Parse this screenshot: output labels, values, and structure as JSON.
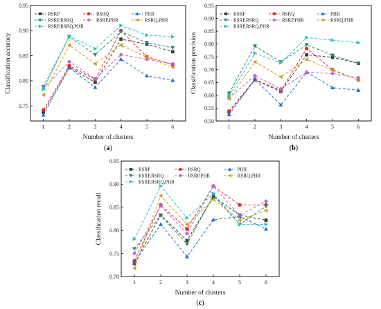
{
  "chart_data": [
    {
      "type": "line",
      "panel_label": "a",
      "xlabel": "Number of clusters",
      "ylabel": "Classification accuracy",
      "x": [
        1,
        2,
        3,
        4,
        5,
        6
      ],
      "xlim": [
        0.5,
        6.5
      ],
      "ylim": [
        0.72,
        0.95
      ],
      "yticks": [
        "0.75",
        "0.80",
        "0.85",
        "0.90",
        "0.95"
      ],
      "legend": "top-left, 3 columns",
      "series": [
        {
          "name": "RSRP",
          "color": "#3d3d3d",
          "marker": "square",
          "values": [
            0.737,
            0.827,
            0.797,
            0.883,
            0.873,
            0.858
          ]
        },
        {
          "name": "RSRQ",
          "color": "#e8282b",
          "marker": "circle",
          "values": [
            0.742,
            0.83,
            0.803,
            0.9,
            0.848,
            0.832
          ]
        },
        {
          "name": "PHR",
          "color": "#1f6fd1",
          "marker": "triangle-up",
          "values": [
            0.732,
            0.826,
            0.787,
            0.843,
            0.81,
            0.801
          ]
        },
        {
          "name": "RSRP,RSRQ",
          "color": "#2a8a5a",
          "marker": "triangle-down",
          "values": [
            0.788,
            0.888,
            0.852,
            0.898,
            0.876,
            0.866
          ]
        },
        {
          "name": "RSRP,PHR",
          "color": "#b564d8",
          "marker": "diamond",
          "values": [
            0.785,
            0.838,
            0.804,
            0.852,
            0.843,
            0.834
          ]
        },
        {
          "name": "RSRQ,PHR",
          "color": "#d49b14",
          "marker": "triangle-left",
          "values": [
            0.772,
            0.871,
            0.834,
            0.871,
            0.847,
            0.827
          ]
        },
        {
          "name": "RSRP,RSRQ,PHR",
          "color": "#22c4be",
          "marker": "triangle-right",
          "values": [
            0.783,
            0.889,
            0.864,
            0.91,
            0.891,
            0.888
          ]
        }
      ]
    },
    {
      "type": "line",
      "panel_label": "b",
      "xlabel": "Number of clusters",
      "ylabel": "Classification precision",
      "x": [
        1,
        2,
        3,
        4,
        5,
        6
      ],
      "xlim": [
        0.5,
        6.5
      ],
      "ylim": [
        0.5,
        0.95
      ],
      "yticks": [
        "0.50",
        "0.55",
        "0.60",
        "0.65",
        "0.70",
        "0.75",
        "0.80",
        "0.85",
        "0.90",
        "0.95"
      ],
      "legend": "top-left, 3 columns",
      "series": [
        {
          "name": "RSRP",
          "color": "#3d3d3d",
          "marker": "square",
          "values": [
            0.535,
            0.66,
            0.615,
            0.758,
            0.748,
            0.725
          ]
        },
        {
          "name": "RSRQ",
          "color": "#e8282b",
          "marker": "circle",
          "values": [
            0.538,
            0.662,
            0.618,
            0.782,
            0.7,
            0.66
          ]
        },
        {
          "name": "PHR",
          "color": "#1f6fd1",
          "marker": "triangle-up",
          "values": [
            0.525,
            0.662,
            0.563,
            0.69,
            0.63,
            0.62
          ]
        },
        {
          "name": "RSRP,RSRQ",
          "color": "#2a8a5a",
          "marker": "triangle-down",
          "values": [
            0.608,
            0.792,
            0.73,
            0.797,
            0.756,
            0.725
          ]
        },
        {
          "name": "RSRP,PHR",
          "color": "#b564d8",
          "marker": "diamond",
          "values": [
            0.588,
            0.677,
            0.625,
            0.69,
            0.685,
            0.668
          ]
        },
        {
          "name": "RSRQ,PHR",
          "color": "#d49b14",
          "marker": "triangle-left",
          "values": [
            0.587,
            0.73,
            0.672,
            0.74,
            0.698,
            0.66
          ]
        },
        {
          "name": "RSRP,RSRQ,PHR",
          "color": "#22c4be",
          "marker": "triangle-right",
          "values": [
            0.598,
            0.764,
            0.727,
            0.825,
            0.815,
            0.805
          ]
        }
      ]
    },
    {
      "type": "line",
      "panel_label": "c",
      "xlabel": "Number of clusters",
      "ylabel": "Classification recall",
      "x": [
        1,
        2,
        3,
        4,
        5,
        6
      ],
      "xlim": [
        0.5,
        6.5
      ],
      "ylim": [
        0.7,
        0.95
      ],
      "yticks": [
        "0.70",
        "0.75",
        "0.80",
        "0.85",
        "0.90",
        "0.95"
      ],
      "legend": "top-left, 3 columns",
      "series": [
        {
          "name": "RSRP",
          "color": "#3d3d3d",
          "marker": "square",
          "values": [
            0.728,
            0.833,
            0.778,
            0.873,
            0.833,
            0.822
          ]
        },
        {
          "name": "RSRQ",
          "color": "#e8282b",
          "marker": "circle",
          "values": [
            0.734,
            0.855,
            0.803,
            0.896,
            0.855,
            0.855
          ]
        },
        {
          "name": "PHR",
          "color": "#1f6fd1",
          "marker": "triangle-up",
          "values": [
            0.73,
            0.813,
            0.743,
            0.823,
            0.83,
            0.803
          ]
        },
        {
          "name": "RSRP,RSRQ",
          "color": "#2a8a5a",
          "marker": "triangle-down",
          "values": [
            0.76,
            0.832,
            0.77,
            0.876,
            0.813,
            0.852
          ]
        },
        {
          "name": "RSRP,PHR",
          "color": "#b564d8",
          "marker": "diamond",
          "values": [
            0.75,
            0.853,
            0.793,
            0.896,
            0.832,
            0.863
          ]
        },
        {
          "name": "RSRQ,PHR",
          "color": "#d49b14",
          "marker": "triangle-left",
          "values": [
            0.718,
            0.875,
            0.813,
            0.867,
            0.822,
            0.843
          ]
        },
        {
          "name": "RSRP,RSRQ,PHR",
          "color": "#22c4be",
          "marker": "triangle-right",
          "values": [
            0.781,
            0.896,
            0.827,
            0.88,
            0.813,
            0.813
          ]
        }
      ]
    }
  ]
}
